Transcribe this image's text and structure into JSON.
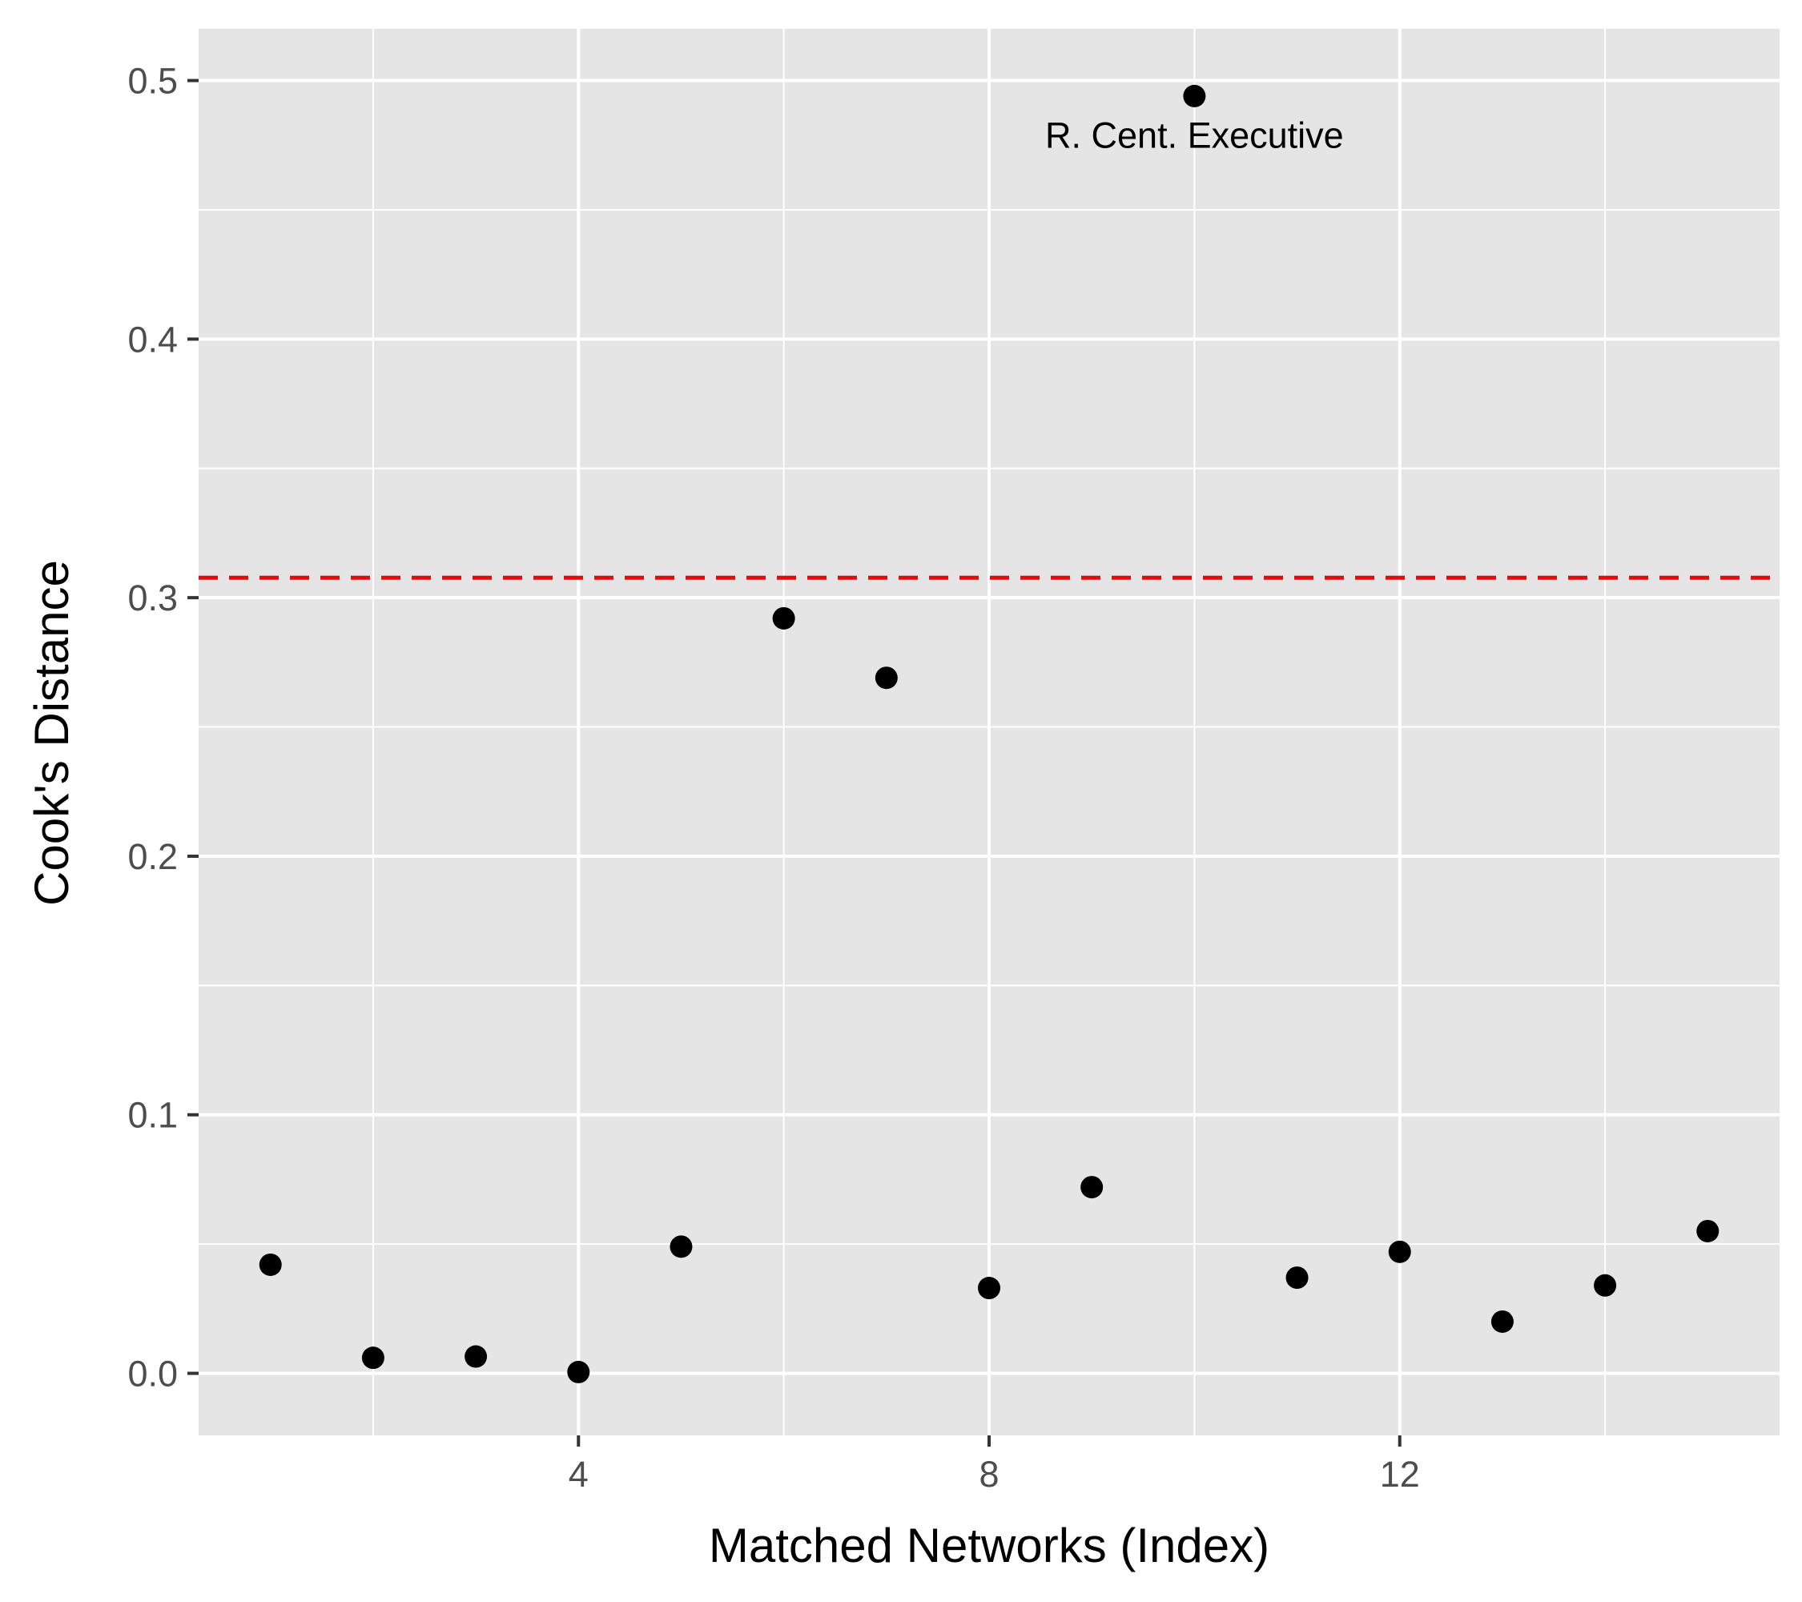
{
  "chart_data": {
    "type": "scatter",
    "title": "",
    "xlabel": "Matched Networks (Index)",
    "ylabel": "Cook's Distance",
    "xlim": [
      0.3,
      15.7
    ],
    "ylim": [
      -0.024,
      0.52
    ],
    "x_major_ticks": [
      4,
      8,
      12
    ],
    "x_minor_ticks": [
      2,
      6,
      10,
      14
    ],
    "y_major_ticks": [
      0.0,
      0.1,
      0.2,
      0.3,
      0.4,
      0.5
    ],
    "y_minor_ticks": [
      0.05,
      0.15,
      0.25,
      0.35,
      0.45
    ],
    "x_tick_labels": [
      "4",
      "8",
      "12"
    ],
    "y_tick_labels": [
      "0.0",
      "0.1",
      "0.2",
      "0.3",
      "0.4",
      "0.5"
    ],
    "grid": true,
    "legend": "none",
    "x": [
      1,
      2,
      3,
      4,
      5,
      6,
      7,
      8,
      9,
      10,
      11,
      12,
      13,
      14,
      15
    ],
    "y": [
      0.042,
      0.006,
      0.0065,
      0.0005,
      0.049,
      0.292,
      0.269,
      0.033,
      0.072,
      0.494,
      0.037,
      0.047,
      0.02,
      0.034,
      0.055
    ],
    "threshold": 0.3077,
    "threshold_color": "#ff0000",
    "point_color": "#000000",
    "panel_background": "#e5e5e5",
    "grid_color": "#ffffff",
    "annotations": [
      {
        "text": "R. Cent. Executive",
        "x": 10,
        "y": 0.479
      }
    ]
  }
}
